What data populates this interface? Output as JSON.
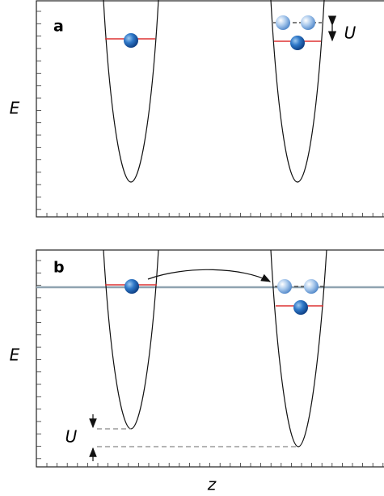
{
  "panels": [
    {
      "label": "a",
      "y_axis_label": "E",
      "gap_label": "U"
    },
    {
      "label": "b",
      "y_axis_label": "E",
      "gap_label": "U",
      "x_axis_label": "z"
    }
  ]
}
